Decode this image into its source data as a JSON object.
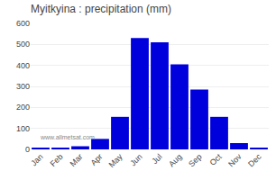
{
  "chart_data": {
    "type": "bar",
    "title": "Myitkyina : precipitation (mm)",
    "categories": [
      "Jan",
      "Feb",
      "Mar",
      "Apr",
      "May",
      "Jun",
      "Jul",
      "Aug",
      "Sep",
      "Oct",
      "Nov",
      "Dec"
    ],
    "values": [
      5,
      5,
      15,
      50,
      155,
      530,
      510,
      405,
      285,
      155,
      30,
      5
    ],
    "color": "#0000dd",
    "ylim": [
      0,
      600
    ],
    "yticks": [
      0,
      100,
      200,
      300,
      400,
      500,
      600
    ],
    "grid": true,
    "annotations": [
      "www.allmetsat.com"
    ]
  }
}
